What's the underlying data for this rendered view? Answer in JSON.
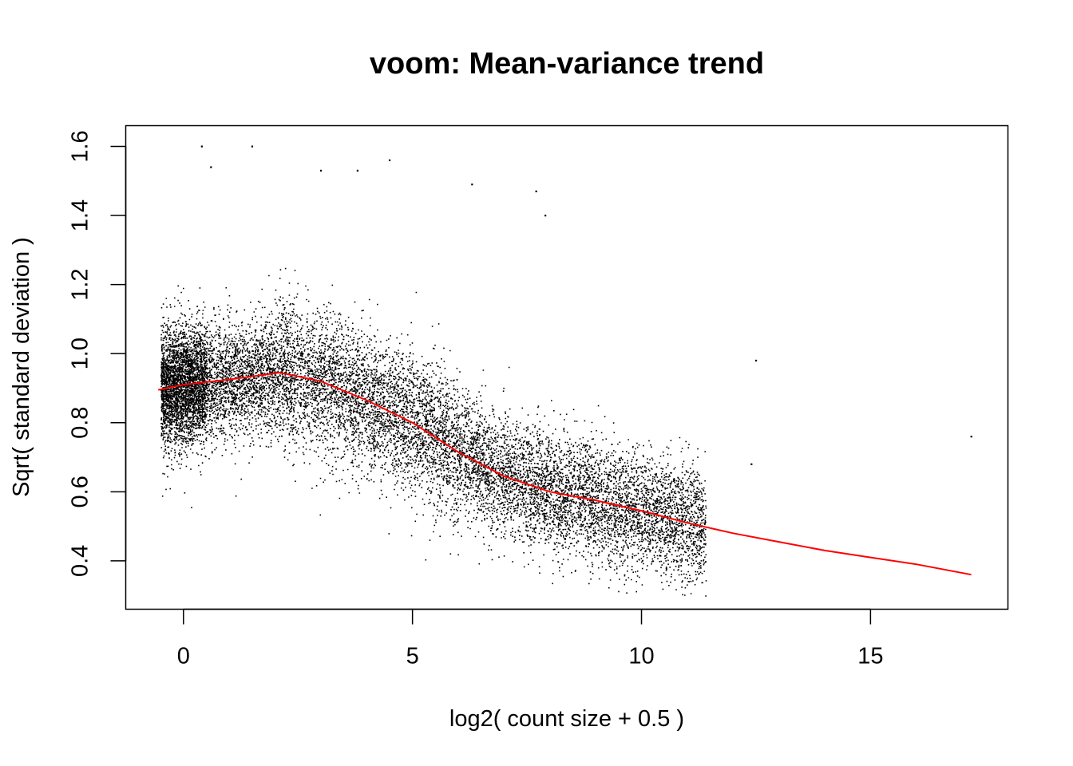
{
  "chart_data": {
    "type": "scatter",
    "title": "voom: Mean-variance trend",
    "xlabel": "log2( count size + 0.5 )",
    "ylabel": "Sqrt( standard deviation )",
    "xlim": [
      -1.26,
      18.0
    ],
    "ylim": [
      0.26,
      1.66
    ],
    "x_ticks": [
      0,
      5,
      10,
      15
    ],
    "x_tick_labels": [
      "0",
      "5",
      "10",
      "15"
    ],
    "y_ticks": [
      0.4,
      0.6,
      0.8,
      1.0,
      1.2,
      1.4,
      1.6
    ],
    "y_tick_labels": [
      "0.4",
      "0.6",
      "0.8",
      "1.0",
      "1.2",
      "1.4",
      "1.6"
    ],
    "grid": false,
    "legend": "none",
    "point_color": "#000000",
    "trend_color": "#ff0000",
    "trend_line": {
      "name": "lowess trend",
      "x": [
        -0.55,
        0.0,
        1.0,
        2.1,
        3.0,
        4.0,
        5.0,
        6.0,
        7.0,
        8.0,
        9.0,
        10.0,
        11.0,
        12.0,
        13.0,
        14.0,
        15.0,
        16.0,
        17.2
      ],
      "y": [
        0.895,
        0.91,
        0.925,
        0.945,
        0.92,
        0.865,
        0.8,
        0.715,
        0.645,
        0.6,
        0.575,
        0.545,
        0.51,
        0.48,
        0.455,
        0.43,
        0.41,
        0.39,
        0.36
      ]
    },
    "scatter_summary": {
      "description_points": "dense cloud of roughly 15,000 genes following the trend with spread about ±0.15",
      "n_points_approx": 15000,
      "outliers": [
        {
          "x": 0.4,
          "y": 1.6
        },
        {
          "x": 1.5,
          "y": 1.6
        },
        {
          "x": 0.6,
          "y": 1.54
        },
        {
          "x": 3.0,
          "y": 1.53
        },
        {
          "x": 3.8,
          "y": 1.53
        },
        {
          "x": 4.5,
          "y": 1.56
        },
        {
          "x": 6.3,
          "y": 1.49
        },
        {
          "x": 7.7,
          "y": 1.47
        },
        {
          "x": 7.9,
          "y": 1.4
        },
        {
          "x": 12.5,
          "y": 0.98
        },
        {
          "x": 12.4,
          "y": 0.68
        },
        {
          "x": 17.2,
          "y": 0.76
        }
      ]
    }
  }
}
